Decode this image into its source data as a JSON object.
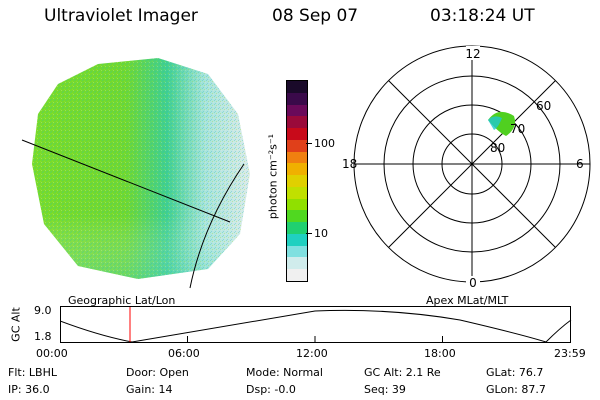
{
  "header": {
    "instrument": "Ultraviolet Imager",
    "date": "08 Sep 07",
    "time": "03:18:24 UT"
  },
  "colorbar": {
    "unit": "photon cm⁻²s⁻¹",
    "ticks": [
      "100",
      "10"
    ],
    "colors": [
      "#1a0a2a",
      "#3a0a4a",
      "#6a0a5a",
      "#9a0a3a",
      "#c80a1a",
      "#e0401a",
      "#f08010",
      "#f0b000",
      "#e0d000",
      "#c0e000",
      "#90e000",
      "#50d820",
      "#20d070",
      "#20d0c0",
      "#80e0e0",
      "#d0ecec",
      "#f0f0f0"
    ]
  },
  "polar": {
    "mlt_labels": {
      "top": "12",
      "bottom": "0",
      "left": "18",
      "right": "6"
    },
    "lat_labels": [
      "60",
      "70",
      "80"
    ]
  },
  "timeline": {
    "left_label": "Geographic Lat/Lon",
    "right_label": "Apex MLat/MLT",
    "y_axis_label": "GC Alt",
    "y_ticks": [
      "9.0",
      "1.8"
    ],
    "x_ticks": [
      "00:00",
      "06:00",
      "12:00",
      "18:00",
      "23:59"
    ],
    "marker_color": "#ff0000"
  },
  "info": {
    "flt": "Flt: LBHL",
    "door": "Door: Open",
    "mode": "Mode: Normal",
    "gc_alt": "GC Alt: 2.1 Re",
    "glat": "GLat: 76.7",
    "ip": "IP: 36.0",
    "gain": "Gain: 14",
    "dsp": "Dsp:   -0.0",
    "seq": "Seq: 39",
    "glon": "GLon: 87.7"
  }
}
